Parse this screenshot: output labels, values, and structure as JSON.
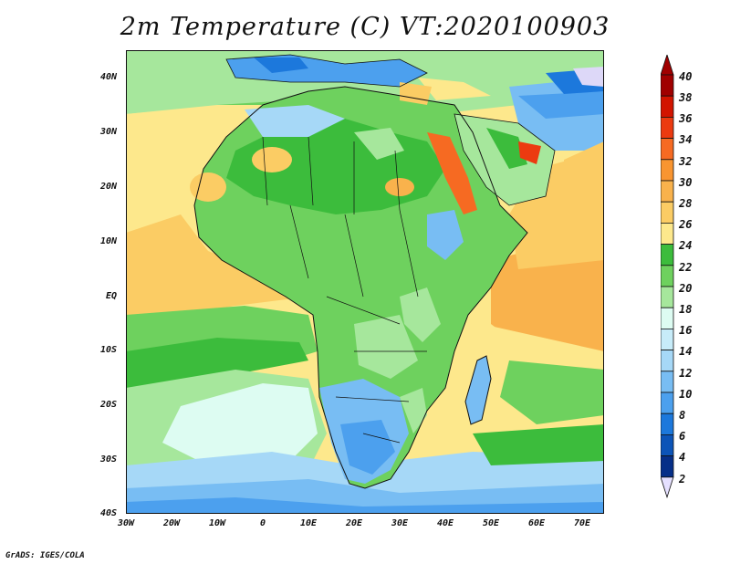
{
  "title": "2m Temperature (C) VT:2020100903",
  "credit": "GrADS: IGES/COLA",
  "map": {
    "lat_labels": [
      "40N",
      "30N",
      "20N",
      "10N",
      "EQ",
      "10S",
      "20S",
      "30S",
      "40S"
    ],
    "lon_labels": [
      "30W",
      "20W",
      "10W",
      "0",
      "10E",
      "20E",
      "30E",
      "40E",
      "50E",
      "60E",
      "70E"
    ],
    "lon_range": [
      -30,
      75
    ],
    "lat_range": [
      -40,
      45
    ]
  },
  "colorbar": {
    "levels": [
      "40",
      "38",
      "36",
      "34",
      "32",
      "30",
      "28",
      "26",
      "24",
      "22",
      "20",
      "18",
      "16",
      "14",
      "12",
      "10",
      "8",
      "6",
      "4",
      "2"
    ],
    "colors": [
      "#a00000",
      "#d21400",
      "#ec3a10",
      "#f66a22",
      "#f99530",
      "#f9b24c",
      "#fbcc64",
      "#fde88c",
      "#3cbc3c",
      "#6ed15e",
      "#a6e79c",
      "#ddfcf2",
      "#c7ecf9",
      "#a6d8f7",
      "#78bdf3",
      "#4ca0ee",
      "#1c78dc",
      "#0c54b8",
      "#062f88",
      "#ddd8f8"
    ],
    "top_color": "#a00000",
    "bottom_color": "#e5e0ff"
  }
}
